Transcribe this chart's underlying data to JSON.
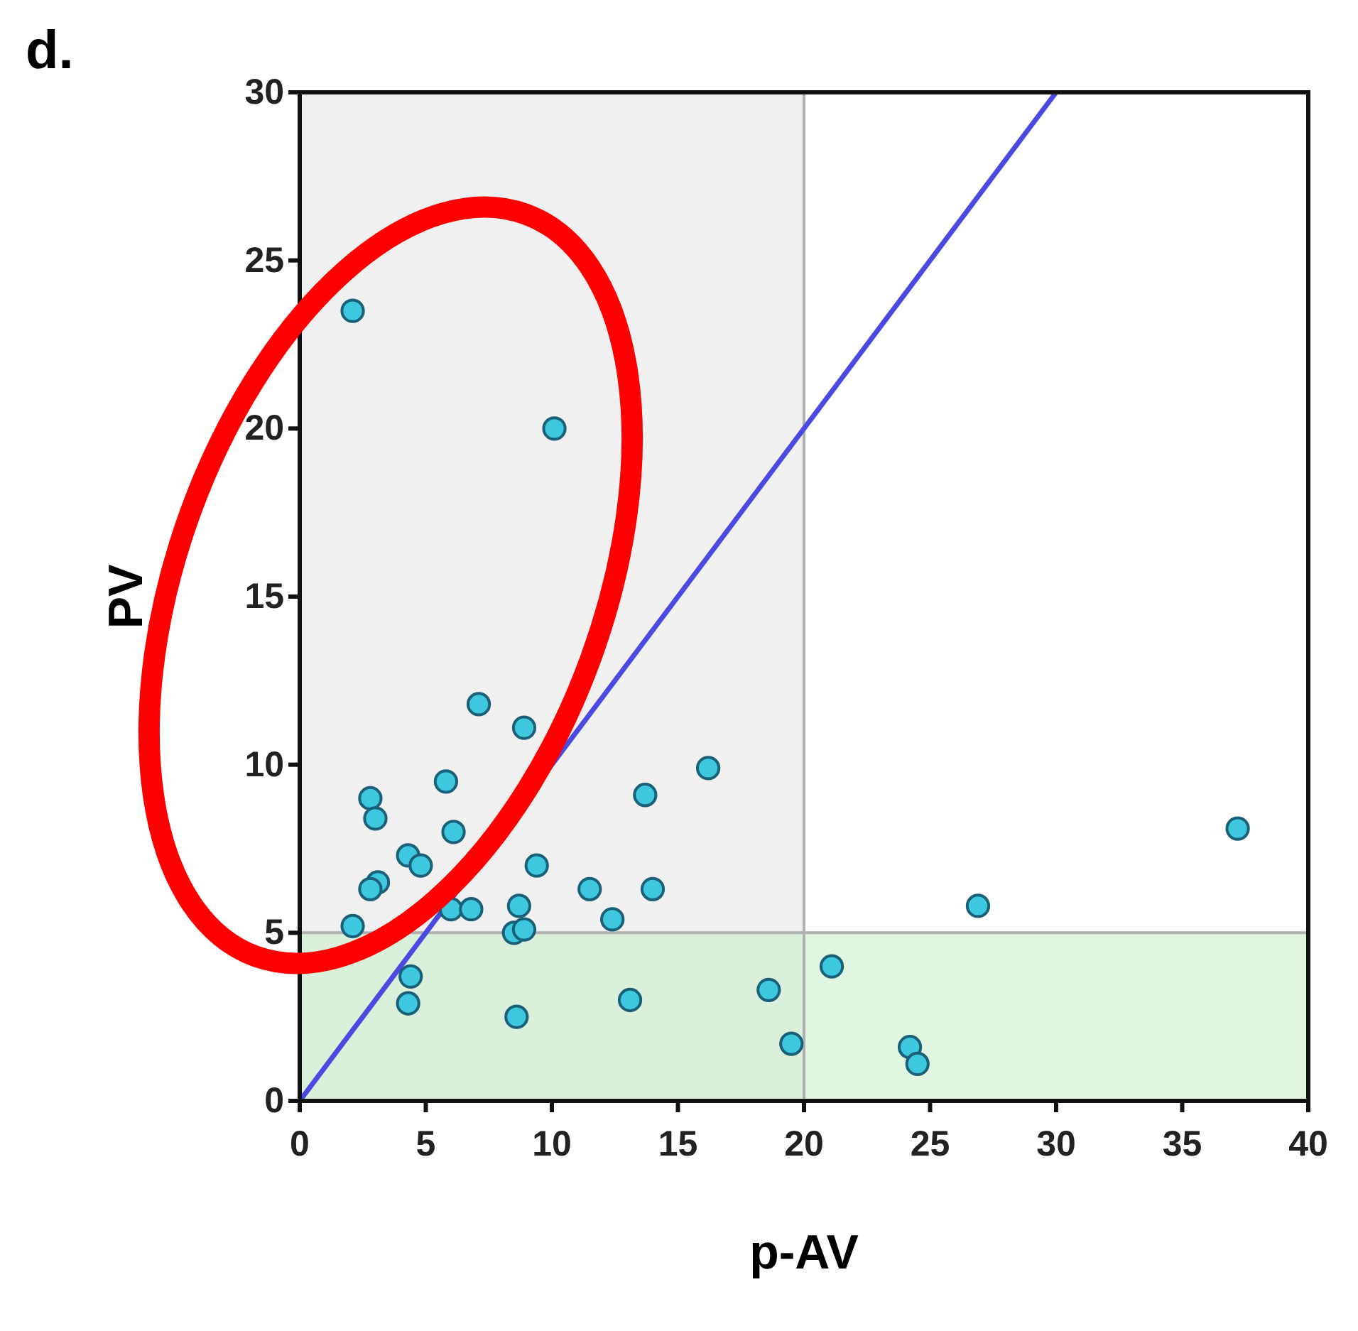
{
  "chart_data": {
    "type": "scatter",
    "title": "d.",
    "xlabel": "p-AV",
    "ylabel": "PV",
    "xlim": [
      0,
      40
    ],
    "xticks": [
      0,
      5,
      10,
      15,
      20,
      25,
      30,
      35,
      40
    ],
    "ylim": [
      0,
      30
    ],
    "yticks": [
      0,
      5,
      10,
      15,
      20,
      25,
      30
    ],
    "grid": false,
    "bands": [
      {
        "axis": "x",
        "from": 0,
        "to": 20,
        "color": "#e6e6e6"
      },
      {
        "axis": "y",
        "from": 0,
        "to": 5,
        "color": "#ccf0cc"
      }
    ],
    "ref_lines": [
      {
        "axis": "x",
        "value": 20,
        "color": "#b0b0b0"
      },
      {
        "axis": "y",
        "value": 5,
        "color": "#b0b0b0"
      }
    ],
    "series": [
      {
        "marker": "circle",
        "color": "#3dc8e0",
        "x": [
          2.1,
          10.1,
          7.1,
          8.9,
          5.8,
          16.2,
          2.8,
          3.0,
          6.1,
          13.7,
          37.2,
          4.3,
          4.8,
          9.4,
          3.1,
          2.8,
          11.5,
          14.0,
          2.1,
          6.0,
          6.8,
          8.7,
          8.5,
          8.9,
          12.4,
          26.9,
          4.4,
          4.3,
          8.6,
          13.1,
          18.6,
          21.1,
          19.5,
          24.2,
          24.5
        ],
        "values": [
          23.5,
          20.0,
          11.8,
          11.1,
          9.5,
          9.9,
          9.0,
          8.4,
          8.0,
          9.1,
          8.1,
          7.3,
          7.0,
          7.0,
          6.5,
          6.3,
          6.3,
          6.3,
          5.2,
          5.7,
          5.7,
          5.8,
          5.0,
          5.1,
          5.4,
          5.8,
          3.7,
          2.9,
          2.5,
          3.0,
          3.3,
          4.0,
          1.7,
          1.6,
          1.1
        ]
      },
      {
        "type": "line",
        "marker": "none",
        "color": "#4a4ae0",
        "x": [
          0,
          30
        ],
        "values": [
          0,
          30
        ]
      }
    ]
  }
}
